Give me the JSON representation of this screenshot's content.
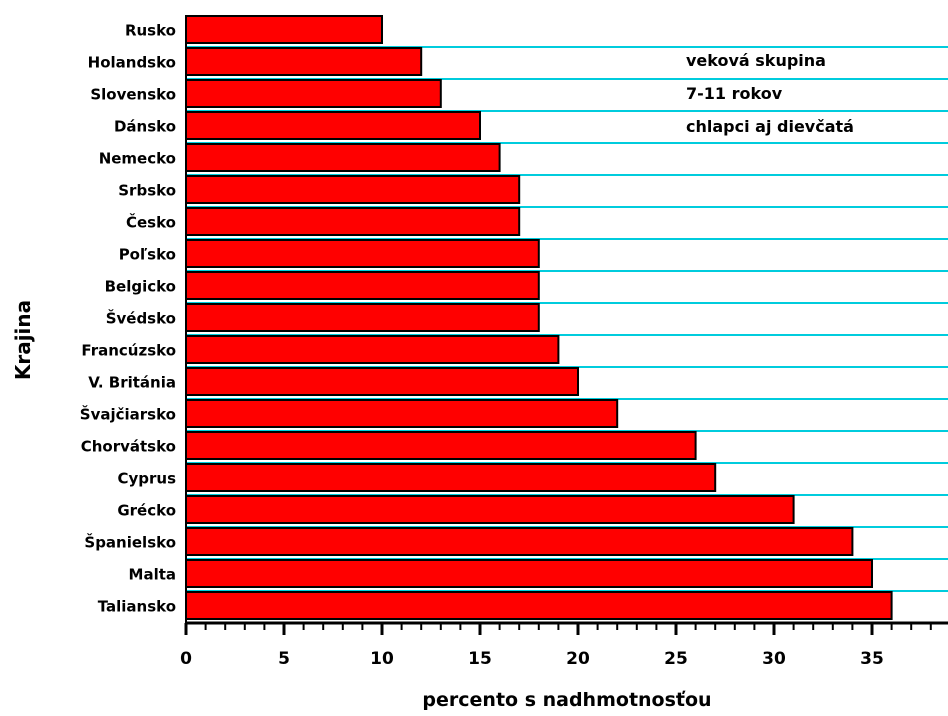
{
  "colors": {
    "bar_fill": "#ff0000",
    "bar_stroke": "#000000",
    "gridline": "#00ccdd",
    "axis": "#000000",
    "background": "#ffffff"
  },
  "annotation": {
    "line1": "veková skupina",
    "line2": "7-11 rokov",
    "line3": "chlapci aj dievčatá"
  },
  "chart_data": {
    "type": "bar",
    "orientation": "horizontal",
    "title": "",
    "xlabel": "percento s nadhmotnosťou",
    "ylabel": "Krajina",
    "xlim": [
      0,
      38.5
    ],
    "x_ticks": [
      0,
      5,
      10,
      15,
      20,
      25,
      30,
      35
    ],
    "grid": "horizontal lines between bars",
    "legend": "none",
    "categories": [
      "Rusko",
      "Holandsko",
      "Slovensko",
      "Dánsko",
      "Nemecko",
      "Srbsko",
      "Česko",
      "Poľsko",
      "Belgicko",
      "Švédsko",
      "Francúzsko",
      "V. Británia",
      "Švajčiarsko",
      "Chorvátsko",
      "Cyprus",
      "Grécko",
      "Španielsko",
      "Malta",
      "Taliansko"
    ],
    "values": [
      10,
      12,
      13,
      15,
      16,
      17,
      17,
      18,
      18,
      18,
      19,
      20,
      22,
      26,
      27,
      31,
      34,
      35,
      36
    ]
  }
}
